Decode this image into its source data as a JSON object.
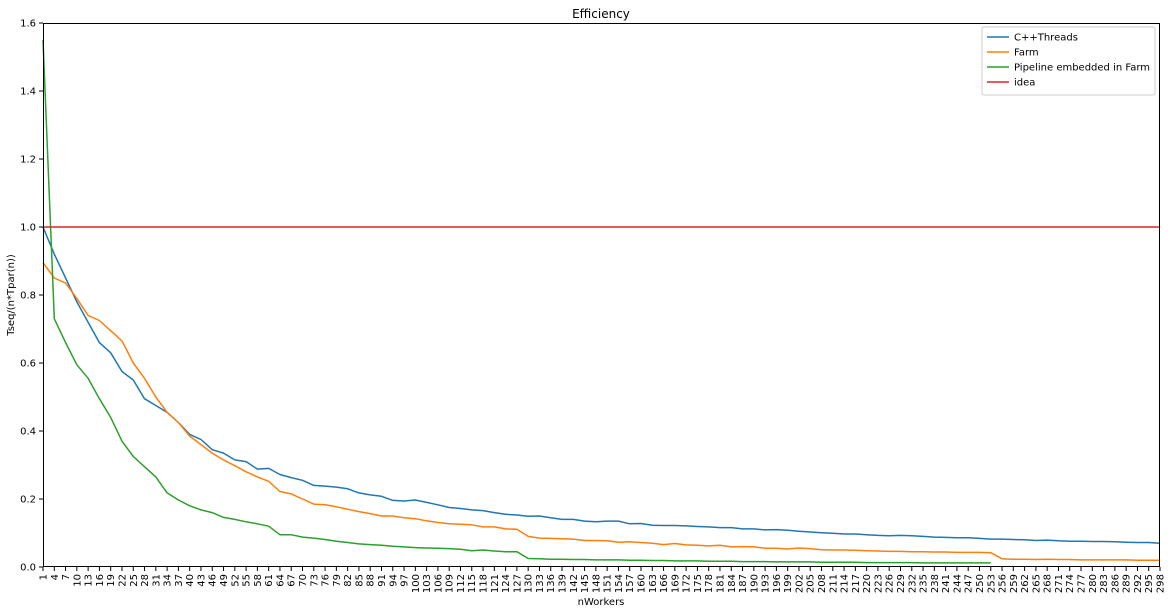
{
  "chart_data": {
    "type": "line",
    "title": "Efficiency",
    "xlabel": "nWorkers",
    "ylabel": "Tseq/(n*Tpar(n))",
    "xlim": [
      1,
      298
    ],
    "ylim": [
      0.0,
      1.6
    ],
    "yticks": [
      0.0,
      0.2,
      0.4,
      0.6,
      0.8,
      1.0,
      1.2,
      1.4,
      1.6
    ],
    "ytick_labels": [
      "0.0",
      "0.2",
      "0.4",
      "0.6",
      "0.8",
      "1.0",
      "1.2",
      "1.4",
      "1.6"
    ],
    "xticks": [
      1,
      4,
      7,
      10,
      13,
      16,
      19,
      22,
      25,
      28,
      31,
      34,
      37,
      40,
      43,
      46,
      49,
      52,
      55,
      58,
      61,
      64,
      67,
      70,
      73,
      76,
      79,
      82,
      85,
      88,
      91,
      94,
      97,
      100,
      103,
      106,
      109,
      112,
      115,
      118,
      121,
      124,
      127,
      130,
      133,
      136,
      139,
      142,
      145,
      148,
      151,
      154,
      157,
      160,
      163,
      166,
      169,
      172,
      175,
      178,
      181,
      184,
      187,
      190,
      193,
      196,
      199,
      202,
      205,
      208,
      211,
      214,
      217,
      220,
      223,
      226,
      229,
      232,
      235,
      238,
      241,
      244,
      247,
      250,
      253,
      256,
      259,
      262,
      265,
      268,
      271,
      274,
      277,
      280,
      283,
      286,
      289,
      292,
      295,
      298
    ],
    "grid": false,
    "legend_position": "top-right",
    "series": [
      {
        "name": "C++Threads",
        "color": "#1f77b4",
        "points": [
          [
            1,
            1.0
          ],
          [
            4,
            0.92
          ],
          [
            7,
            0.85
          ],
          [
            10,
            0.78
          ],
          [
            13,
            0.72
          ],
          [
            16,
            0.66
          ],
          [
            19,
            0.63
          ],
          [
            22,
            0.575
          ],
          [
            25,
            0.55
          ],
          [
            28,
            0.495
          ],
          [
            31,
            0.475
          ],
          [
            34,
            0.455
          ],
          [
            37,
            0.425
          ],
          [
            40,
            0.39
          ],
          [
            43,
            0.375
          ],
          [
            46,
            0.345
          ],
          [
            49,
            0.335
          ],
          [
            52,
            0.315
          ],
          [
            55,
            0.31
          ],
          [
            58,
            0.288
          ],
          [
            61,
            0.29
          ],
          [
            64,
            0.272
          ],
          [
            67,
            0.263
          ],
          [
            70,
            0.255
          ],
          [
            73,
            0.24
          ],
          [
            76,
            0.238
          ],
          [
            79,
            0.235
          ],
          [
            82,
            0.23
          ],
          [
            85,
            0.218
          ],
          [
            88,
            0.212
          ],
          [
            91,
            0.208
          ],
          [
            94,
            0.196
          ],
          [
            97,
            0.194
          ],
          [
            100,
            0.197
          ],
          [
            103,
            0.19
          ],
          [
            106,
            0.183
          ],
          [
            109,
            0.175
          ],
          [
            112,
            0.172
          ],
          [
            115,
            0.168
          ],
          [
            118,
            0.166
          ],
          [
            121,
            0.16
          ],
          [
            124,
            0.155
          ],
          [
            127,
            0.153
          ],
          [
            130,
            0.149
          ],
          [
            133,
            0.15
          ],
          [
            136,
            0.145
          ],
          [
            139,
            0.14
          ],
          [
            142,
            0.14
          ],
          [
            145,
            0.135
          ],
          [
            148,
            0.133
          ],
          [
            151,
            0.135
          ],
          [
            154,
            0.135
          ],
          [
            157,
            0.127
          ],
          [
            160,
            0.128
          ],
          [
            163,
            0.123
          ],
          [
            166,
            0.122
          ],
          [
            169,
            0.122
          ],
          [
            172,
            0.121
          ],
          [
            175,
            0.119
          ],
          [
            178,
            0.118
          ],
          [
            181,
            0.116
          ],
          [
            184,
            0.116
          ],
          [
            187,
            0.112
          ],
          [
            190,
            0.112
          ],
          [
            193,
            0.109
          ],
          [
            196,
            0.11
          ],
          [
            199,
            0.108
          ],
          [
            202,
            0.105
          ],
          [
            205,
            0.103
          ],
          [
            208,
            0.101
          ],
          [
            211,
            0.099
          ],
          [
            214,
            0.097
          ],
          [
            217,
            0.097
          ],
          [
            220,
            0.095
          ],
          [
            223,
            0.093
          ],
          [
            226,
            0.092
          ],
          [
            229,
            0.093
          ],
          [
            232,
            0.092
          ],
          [
            235,
            0.09
          ],
          [
            238,
            0.088
          ],
          [
            241,
            0.087
          ],
          [
            244,
            0.086
          ],
          [
            247,
            0.086
          ],
          [
            250,
            0.084
          ],
          [
            253,
            0.082
          ],
          [
            256,
            0.082
          ],
          [
            259,
            0.081
          ],
          [
            262,
            0.08
          ],
          [
            265,
            0.078
          ],
          [
            268,
            0.079
          ],
          [
            271,
            0.077
          ],
          [
            274,
            0.076
          ],
          [
            277,
            0.076
          ],
          [
            280,
            0.075
          ],
          [
            283,
            0.075
          ],
          [
            286,
            0.074
          ],
          [
            289,
            0.073
          ],
          [
            292,
            0.072
          ],
          [
            295,
            0.072
          ],
          [
            298,
            0.07
          ]
        ]
      },
      {
        "name": "Farm",
        "color": "#ff7f0e",
        "points": [
          [
            1,
            0.895
          ],
          [
            4,
            0.85
          ],
          [
            7,
            0.835
          ],
          [
            10,
            0.79
          ],
          [
            13,
            0.74
          ],
          [
            16,
            0.725
          ],
          [
            19,
            0.695
          ],
          [
            22,
            0.665
          ],
          [
            25,
            0.6
          ],
          [
            28,
            0.555
          ],
          [
            31,
            0.5
          ],
          [
            34,
            0.455
          ],
          [
            37,
            0.425
          ],
          [
            40,
            0.385
          ],
          [
            43,
            0.36
          ],
          [
            46,
            0.335
          ],
          [
            49,
            0.315
          ],
          [
            52,
            0.298
          ],
          [
            55,
            0.28
          ],
          [
            58,
            0.265
          ],
          [
            61,
            0.252
          ],
          [
            64,
            0.222
          ],
          [
            67,
            0.215
          ],
          [
            70,
            0.2
          ],
          [
            73,
            0.185
          ],
          [
            76,
            0.183
          ],
          [
            79,
            0.177
          ],
          [
            82,
            0.17
          ],
          [
            85,
            0.163
          ],
          [
            88,
            0.157
          ],
          [
            91,
            0.15
          ],
          [
            94,
            0.15
          ],
          [
            97,
            0.145
          ],
          [
            100,
            0.142
          ],
          [
            103,
            0.136
          ],
          [
            106,
            0.131
          ],
          [
            109,
            0.127
          ],
          [
            112,
            0.126
          ],
          [
            115,
            0.124
          ],
          [
            118,
            0.118
          ],
          [
            121,
            0.118
          ],
          [
            124,
            0.112
          ],
          [
            127,
            0.111
          ],
          [
            130,
            0.09
          ],
          [
            133,
            0.085
          ],
          [
            136,
            0.084
          ],
          [
            139,
            0.083
          ],
          [
            142,
            0.082
          ],
          [
            145,
            0.078
          ],
          [
            148,
            0.078
          ],
          [
            151,
            0.077
          ],
          [
            154,
            0.073
          ],
          [
            157,
            0.074
          ],
          [
            160,
            0.072
          ],
          [
            163,
            0.07
          ],
          [
            166,
            0.066
          ],
          [
            169,
            0.069
          ],
          [
            172,
            0.065
          ],
          [
            175,
            0.064
          ],
          [
            178,
            0.062
          ],
          [
            181,
            0.064
          ],
          [
            184,
            0.059
          ],
          [
            187,
            0.06
          ],
          [
            190,
            0.059
          ],
          [
            193,
            0.055
          ],
          [
            196,
            0.055
          ],
          [
            199,
            0.053
          ],
          [
            202,
            0.056
          ],
          [
            205,
            0.054
          ],
          [
            208,
            0.051
          ],
          [
            211,
            0.05
          ],
          [
            214,
            0.05
          ],
          [
            217,
            0.049
          ],
          [
            220,
            0.048
          ],
          [
            223,
            0.047
          ],
          [
            226,
            0.046
          ],
          [
            229,
            0.046
          ],
          [
            232,
            0.045
          ],
          [
            235,
            0.045
          ],
          [
            238,
            0.044
          ],
          [
            241,
            0.044
          ],
          [
            244,
            0.043
          ],
          [
            247,
            0.043
          ],
          [
            250,
            0.043
          ],
          [
            253,
            0.042
          ],
          [
            256,
            0.024
          ],
          [
            259,
            0.023
          ],
          [
            262,
            0.023
          ],
          [
            265,
            0.022
          ],
          [
            268,
            0.023
          ],
          [
            271,
            0.022
          ],
          [
            274,
            0.022
          ],
          [
            277,
            0.021
          ],
          [
            280,
            0.021
          ],
          [
            283,
            0.021
          ],
          [
            286,
            0.021
          ],
          [
            289,
            0.021
          ],
          [
            292,
            0.02
          ],
          [
            295,
            0.02
          ],
          [
            298,
            0.02
          ]
        ]
      },
      {
        "name": "Pipeline embedded in Farm",
        "color": "#2ca02c",
        "points": [
          [
            1,
            1.55
          ],
          [
            4,
            0.73
          ],
          [
            7,
            0.66
          ],
          [
            10,
            0.595
          ],
          [
            13,
            0.555
          ],
          [
            16,
            0.495
          ],
          [
            19,
            0.44
          ],
          [
            22,
            0.37
          ],
          [
            25,
            0.325
          ],
          [
            28,
            0.295
          ],
          [
            31,
            0.265
          ],
          [
            34,
            0.218
          ],
          [
            37,
            0.197
          ],
          [
            40,
            0.18
          ],
          [
            43,
            0.168
          ],
          [
            46,
            0.16
          ],
          [
            49,
            0.146
          ],
          [
            52,
            0.14
          ],
          [
            55,
            0.133
          ],
          [
            58,
            0.127
          ],
          [
            61,
            0.12
          ],
          [
            64,
            0.095
          ],
          [
            67,
            0.095
          ],
          [
            70,
            0.088
          ],
          [
            73,
            0.085
          ],
          [
            76,
            0.081
          ],
          [
            79,
            0.076
          ],
          [
            82,
            0.072
          ],
          [
            85,
            0.068
          ],
          [
            88,
            0.066
          ],
          [
            91,
            0.064
          ],
          [
            94,
            0.061
          ],
          [
            97,
            0.059
          ],
          [
            100,
            0.057
          ],
          [
            103,
            0.056
          ],
          [
            106,
            0.055
          ],
          [
            109,
            0.054
          ],
          [
            112,
            0.052
          ],
          [
            115,
            0.048
          ],
          [
            118,
            0.05
          ],
          [
            121,
            0.047
          ],
          [
            124,
            0.045
          ],
          [
            127,
            0.045
          ],
          [
            130,
            0.025
          ],
          [
            133,
            0.024
          ],
          [
            136,
            0.023
          ],
          [
            139,
            0.023
          ],
          [
            142,
            0.022
          ],
          [
            145,
            0.022
          ],
          [
            148,
            0.021
          ],
          [
            151,
            0.021
          ],
          [
            154,
            0.021
          ],
          [
            157,
            0.02
          ],
          [
            160,
            0.02
          ],
          [
            163,
            0.019
          ],
          [
            166,
            0.019
          ],
          [
            169,
            0.018
          ],
          [
            172,
            0.018
          ],
          [
            175,
            0.018
          ],
          [
            178,
            0.017
          ],
          [
            181,
            0.017
          ],
          [
            184,
            0.017
          ],
          [
            187,
            0.016
          ],
          [
            190,
            0.016
          ],
          [
            193,
            0.016
          ],
          [
            196,
            0.015
          ],
          [
            199,
            0.015
          ],
          [
            202,
            0.015
          ],
          [
            205,
            0.015
          ],
          [
            208,
            0.014
          ],
          [
            211,
            0.014
          ],
          [
            214,
            0.014
          ],
          [
            217,
            0.014
          ],
          [
            220,
            0.013
          ],
          [
            223,
            0.013
          ],
          [
            226,
            0.013
          ],
          [
            229,
            0.013
          ],
          [
            232,
            0.013
          ],
          [
            235,
            0.012
          ],
          [
            238,
            0.012
          ],
          [
            241,
            0.012
          ],
          [
            244,
            0.012
          ],
          [
            247,
            0.012
          ],
          [
            250,
            0.012
          ],
          [
            253,
            0.012
          ]
        ]
      },
      {
        "name": "idea",
        "color": "#d62728",
        "points": [
          [
            1,
            1.0
          ],
          [
            298,
            1.0
          ]
        ]
      }
    ]
  }
}
